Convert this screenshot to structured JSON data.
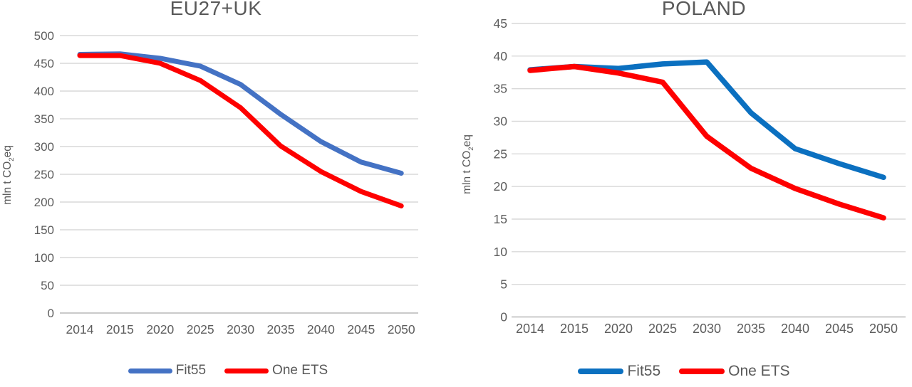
{
  "chart_data": [
    {
      "type": "line",
      "title": "EU27+UK",
      "ylabel": "mln t CO2eq",
      "ylabel_parts": [
        "mln t CO",
        "2",
        "eq"
      ],
      "categories": [
        "2014",
        "2015",
        "2020",
        "2025",
        "2030",
        "2035",
        "2040",
        "2045",
        "2050"
      ],
      "series": [
        {
          "name": "Fit55",
          "color": "#4472C4",
          "values": [
            466,
            467,
            459,
            445,
            412,
            358,
            309,
            272,
            252
          ]
        },
        {
          "name": "One ETS",
          "color": "#FE0000",
          "values": [
            464,
            464,
            450,
            419,
            370,
            301,
            255,
            219,
            193
          ]
        }
      ],
      "ylim": [
        0,
        500
      ],
      "ytick_step": 50,
      "grid": true,
      "legend_position": "bottom"
    },
    {
      "type": "line",
      "title": "POLAND",
      "ylabel": "mln t CO2eq",
      "ylabel_parts": [
        "mln t CO",
        "2",
        "eq"
      ],
      "categories": [
        "2014",
        "2015",
        "2020",
        "2025",
        "2030",
        "2035",
        "2040",
        "2045",
        "2050"
      ],
      "series": [
        {
          "name": "Fit55",
          "color": "#0B70C0",
          "values": [
            37.9,
            38.4,
            38.1,
            38.8,
            39.1,
            31.3,
            25.8,
            23.5,
            21.4
          ]
        },
        {
          "name": "One ETS",
          "color": "#FE0000",
          "values": [
            37.8,
            38.4,
            37.4,
            36.0,
            27.7,
            22.8,
            19.7,
            17.3,
            15.2
          ]
        }
      ],
      "ylim": [
        0,
        45
      ],
      "ytick_step": 5,
      "grid": true,
      "legend_position": "bottom"
    }
  ],
  "colors": {
    "gridline": "#D9D9D9",
    "axis_line": "#C3C3C3",
    "text": "#595959",
    "fit55_left": "#4472C4",
    "fit55_right": "#0B70C0",
    "one_ets": "#FE0000"
  }
}
